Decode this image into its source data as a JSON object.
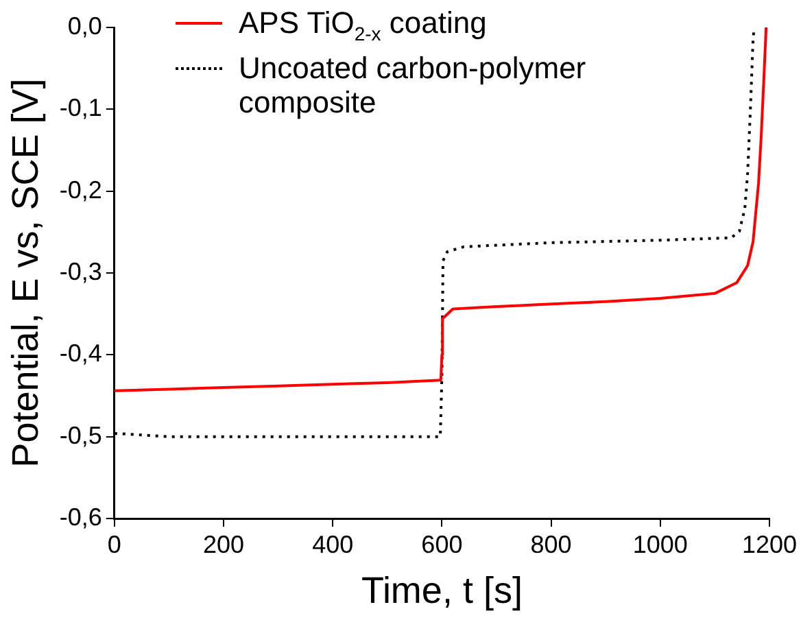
{
  "chart_data": {
    "type": "line",
    "xlabel": "Time, t [s]",
    "ylabel": "Potential, E vs, SCE [V]",
    "legend": "top left",
    "marker": "none",
    "xlim": [
      0,
      1200
    ],
    "xticks": [
      0,
      200,
      400,
      600,
      800,
      1000,
      1200
    ],
    "ylim": [
      -0.6,
      0
    ],
    "yticks": [
      {
        "value": -0.6,
        "label": "-0,6"
      },
      {
        "value": -0.5,
        "label": "-0,5"
      },
      {
        "value": -0.4,
        "label": "-0,4"
      },
      {
        "value": -0.3,
        "label": "-0,3"
      },
      {
        "value": -0.2,
        "label": "-0,2"
      },
      {
        "value": -0.1,
        "label": "-0,1"
      },
      {
        "value": 0,
        "label": "0,0"
      }
    ],
    "series": [
      {
        "name": "APS TiO$_{2-x}$ coating",
        "color": "#ff0000",
        "line_style": "solid",
        "x": [
          0,
          100,
          200,
          300,
          400,
          500,
          598,
          600,
          601,
          620,
          700,
          800,
          900,
          1000,
          1100,
          1140,
          1160,
          1170,
          1180,
          1185,
          1190,
          1194
        ],
        "values": [
          -0.444,
          -0.442,
          -0.44,
          -0.438,
          -0.436,
          -0.434,
          -0.431,
          -0.4,
          -0.356,
          -0.344,
          -0.341,
          -0.338,
          -0.335,
          -0.331,
          -0.325,
          -0.312,
          -0.291,
          -0.262,
          -0.191,
          -0.132,
          -0.06,
          0
        ]
      },
      {
        "name": "Uncoated carbon-polymer composite",
        "color": "#000000",
        "line_style": "dotted",
        "x": [
          0,
          100,
          300,
          597,
          600,
          602,
          610,
          640,
          800,
          1000,
          1130,
          1145,
          1155,
          1160,
          1165,
          1170,
          1172
        ],
        "values": [
          -0.496,
          -0.5,
          -0.5,
          -0.5,
          -0.426,
          -0.285,
          -0.274,
          -0.268,
          -0.263,
          -0.26,
          -0.257,
          -0.249,
          -0.221,
          -0.179,
          -0.103,
          -0.015,
          0
        ]
      }
    ]
  }
}
